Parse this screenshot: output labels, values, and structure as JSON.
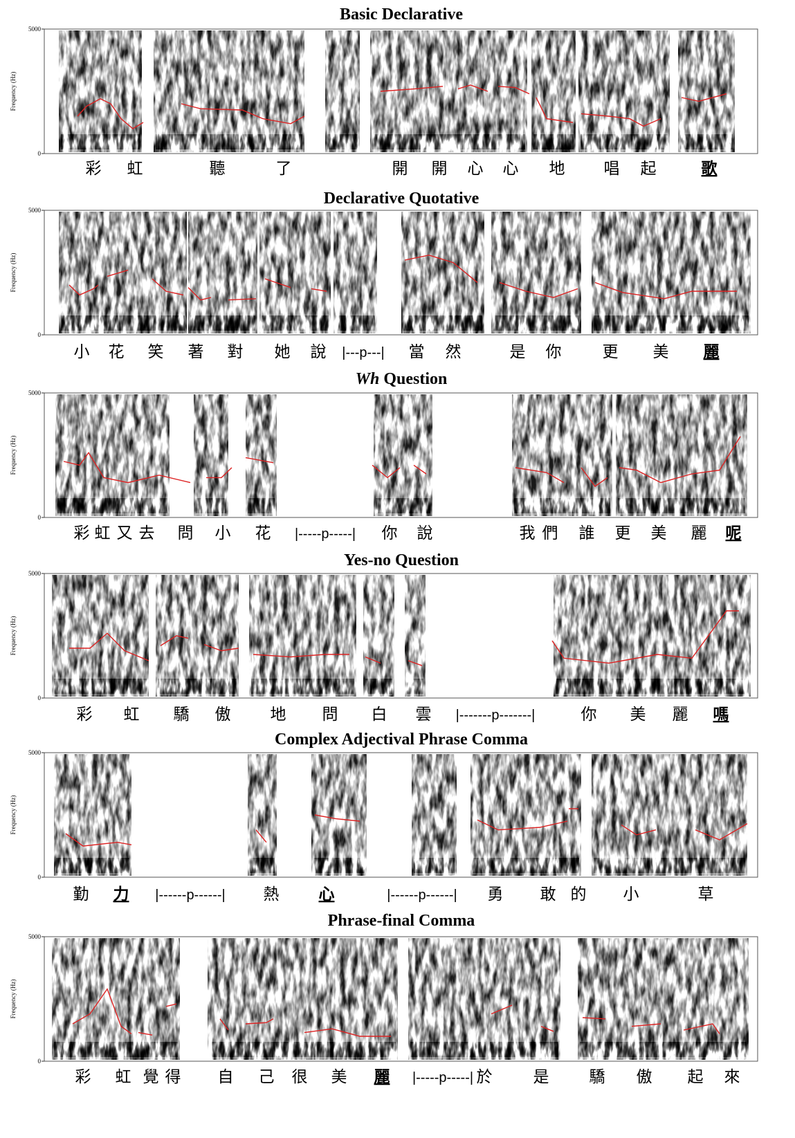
{
  "panels": [
    {
      "title": "Basic Declarative",
      "ylabel": "Frequency (Hz)",
      "yticks": [
        0,
        5000
      ],
      "syllables": [
        "彩",
        "虹",
        "聽",
        "了",
        "開",
        "開",
        "心",
        "心",
        "地",
        "唱",
        "起",
        {
          "text": "歌",
          "bold": true
        }
      ]
    },
    {
      "title": "Declarative Quotative",
      "ylabel": "Frequency (Hz)",
      "yticks": [
        0,
        5000
      ],
      "syllables": [
        "小",
        "花",
        "笑",
        "著",
        "對",
        "她",
        "說",
        "|---p---|",
        "當",
        "然",
        "是",
        "你",
        "更",
        "美",
        {
          "text": "麗",
          "bold": true
        }
      ]
    },
    {
      "title_italic": "Wh",
      "title": "Question",
      "ylabel": "Frequency (Hz)",
      "yticks": [
        0,
        5000
      ],
      "syllables": [
        "彩",
        "虹",
        "又",
        "去",
        "問",
        "小",
        "花",
        "|-----p-----|",
        "你",
        "說",
        "我",
        "們",
        "誰",
        "更",
        "美",
        "麗",
        {
          "text": "呢",
          "bold": true
        }
      ]
    },
    {
      "title": "Yes-no Question",
      "ylabel": "Frequency (Hz)",
      "yticks": [
        0,
        5000
      ],
      "syllables": [
        "彩",
        "虹",
        "驕",
        "傲",
        "地",
        "問",
        "白",
        "雲",
        "|-------p-------|",
        "你",
        "美",
        "麗",
        {
          "text": "嗎",
          "bold": true
        }
      ]
    },
    {
      "title": "Complex Adjectival Phrase Comma",
      "ylabel": "Frequency (Hz)",
      "yticks": [
        0,
        5000
      ],
      "syllables": [
        "勤",
        {
          "text": "力",
          "bold": true
        },
        "|------p------|",
        "熱",
        {
          "text": "心",
          "bold": true
        },
        "|------p------|",
        "勇",
        "敢",
        "的",
        "小",
        "草"
      ]
    },
    {
      "title": "Phrase-final Comma",
      "ylabel": "Frequency (Hz)",
      "yticks": [
        0,
        5000
      ],
      "syllables": [
        "彩",
        "虹",
        "覺",
        "得",
        "自",
        "己",
        "很",
        "美",
        {
          "text": "麗",
          "bold": true
        },
        "|-----p-----|",
        "於",
        "是",
        "驕",
        "傲",
        "起",
        "來"
      ]
    }
  ]
}
